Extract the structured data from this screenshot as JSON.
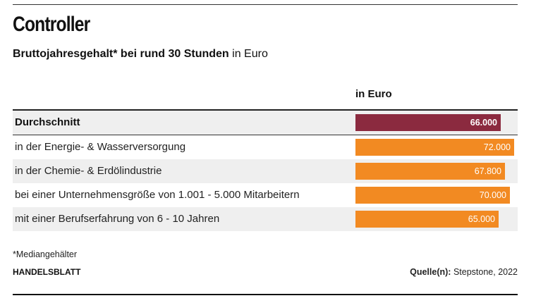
{
  "title": "Controller",
  "subtitle": {
    "bold": "Bruttojahresgehalt* bei rund 30 Stunden",
    "normal": "in Euro"
  },
  "column_header": "in Euro",
  "footnote": "*Mediangehälter",
  "brand": "HANDELSBLATT",
  "source": {
    "label": "Quelle(n):",
    "value": "Stepstone, 2022"
  },
  "colors": {
    "highlight": "#8b2a3f",
    "bar": "#f28a22"
  },
  "chart_data": {
    "type": "bar",
    "orientation": "horizontal",
    "title": "Controller",
    "subtitle": "Bruttojahresgehalt* bei rund 30 Stunden in Euro",
    "categories": [
      "Durchschnitt",
      "in der Energie- & Wasserversorgung",
      "in der Chemie- & Erdölindustrie",
      "bei einer Unternehmensgröße von 1.001 - 5.000 Mitarbeitern",
      "mit einer Berufserfahrung von 6 - 10 Jahren"
    ],
    "values": [
      66000,
      72000,
      67800,
      70000,
      65000
    ],
    "value_labels": [
      "66.000",
      "72.000",
      "67.800",
      "70.000",
      "65.000"
    ],
    "highlight_index": 0,
    "grid": false,
    "legend": "none"
  }
}
